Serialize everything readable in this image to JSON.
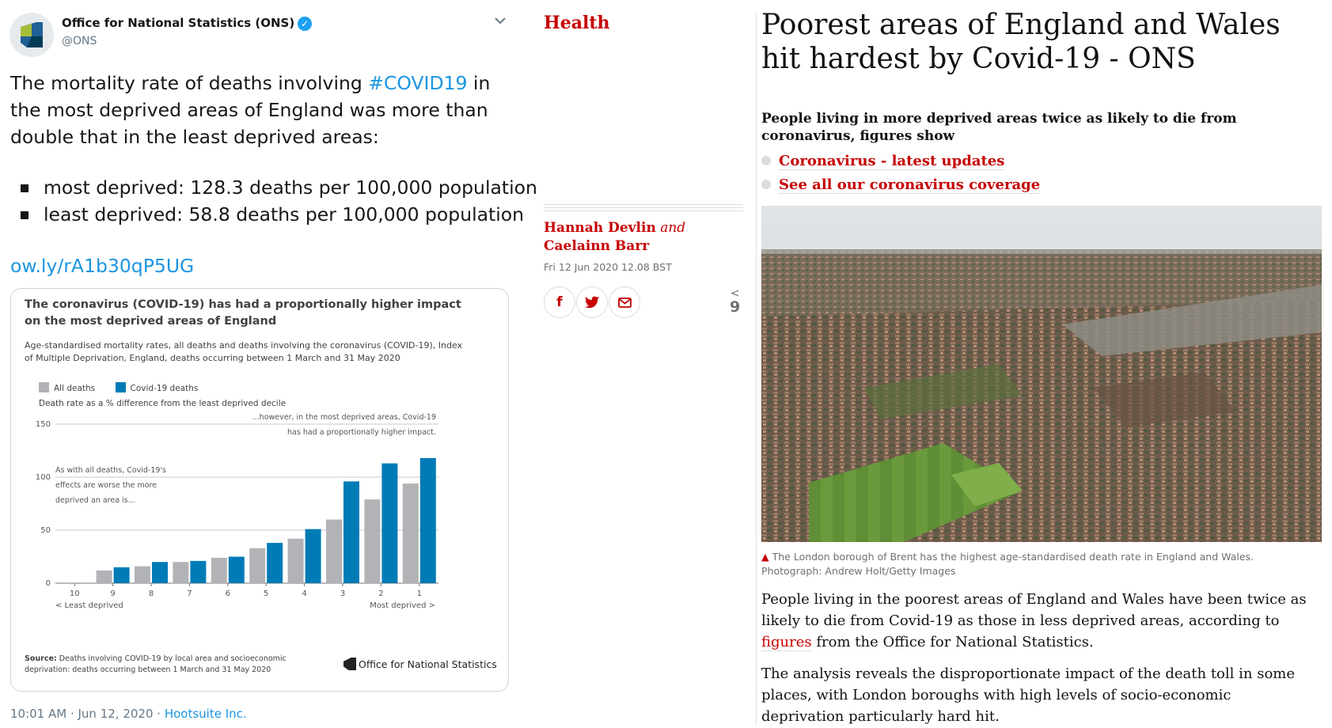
{
  "tweet": {
    "account_name": "Office for National Statistics (ONS)",
    "handle": "@ONS",
    "text_before": "The mortality rate of deaths involving ",
    "hashtag": "#COVID19",
    "text_after": " in the most deprived areas of England was more than double that in the least deprived areas:",
    "bullets": [
      "most deprived: 128.3 deaths per 100,000 population",
      "least deprived: 58.8 deaths per 100,000 population"
    ],
    "link": "ow.ly/rA1b30qP5UG",
    "time": "10:01 AM · Jun 12, 2020 · ",
    "via": "Hootsuite Inc."
  },
  "chart_card": {
    "title": "The coronavirus (COVID-19) has had a proportionally higher impact on the most deprived areas of England",
    "subtitle": "Age-standardised mortality rates, all deaths and deaths involving the coronavirus (COVID-19), Index of Multiple Deprivation, England, deaths occurring between 1 March and 31 May 2020",
    "axis_note": "Death rate as a % difference from the least deprived decile",
    "source_label": "Source:",
    "source_text": " Deaths involving COVID-19 by local area and socioeconomic deprivation: deaths occurring between 1 March and 31 May 2020",
    "logo_text": "Office for National Statistics"
  },
  "chart_data": {
    "type": "bar",
    "categories": [
      "10",
      "9",
      "8",
      "7",
      "6",
      "5",
      "4",
      "3",
      "2",
      "1"
    ],
    "series": [
      {
        "name": "All deaths",
        "values": [
          0,
          12,
          16,
          20,
          24,
          33,
          42,
          60,
          79,
          94
        ],
        "color": "#b1b3b6"
      },
      {
        "name": "Covid-19 deaths",
        "values": [
          0,
          15,
          20,
          21,
          25,
          38,
          51,
          96,
          113,
          118
        ],
        "color": "#007bb6"
      }
    ],
    "ylim": [
      0,
      150
    ],
    "yticks": [
      0,
      50,
      100,
      150
    ],
    "x_left_label": "< Least deprived",
    "x_right_label": "Most deprived >",
    "annotation_left": [
      "As with all deaths, Covid-19's",
      "effects are worse the more",
      "deprived an area is..."
    ],
    "annotation_right": [
      "...however, in the most deprived areas, Covid-19",
      "has had a proportionally higher impact."
    ],
    "grid": true,
    "legend": "top-left"
  },
  "article": {
    "section": "Health",
    "byline_1": "Hannah Devlin",
    "byline_and": " and",
    "byline_2": "Caelainn Barr",
    "date": "Fri 12 Jun 2020 12.08 BST",
    "share_count": "9",
    "headline": "Poorest areas of England and Wales hit hardest by Covid-19 - ONS",
    "standfirst": "People living in more deprived areas twice as likely to die from coronavirus, figures show",
    "links": [
      "Coronavirus - latest updates",
      "See all our coronavirus coverage"
    ],
    "caption_text": " The London borough of Brent has the highest age-standardised death rate in England and Wales. Photograph: Andrew Holt/Getty Images",
    "p1_before": "People living in the poorest areas of England and Wales have been twice as likely to die from Covid-19 as those in less deprived areas, according to ",
    "p1_link": "figures",
    "p1_after": " from the Office for National Statistics.",
    "p2": "The analysis reveals the disproportionate impact of the death toll in some places, with London boroughs with high levels of socio-economic deprivation particularly hard hit."
  },
  "colors": {
    "guardian_red": "#c70000",
    "twitter_blue": "#1b95e0",
    "covid_bar": "#007bb6",
    "all_bar": "#b1b3b6"
  },
  "icons": [
    "verified-icon",
    "chevron-down-icon",
    "facebook-icon",
    "twitter-icon",
    "email-icon",
    "share-icon"
  ]
}
